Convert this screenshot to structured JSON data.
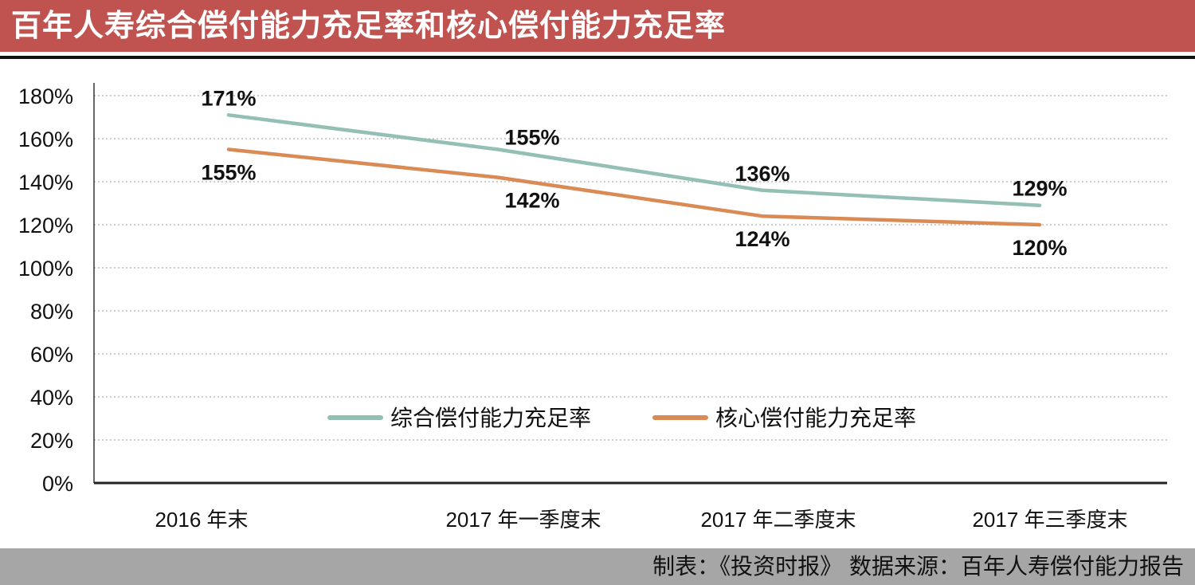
{
  "title": "百年人寿综合偿付能力充足率和核心偿付能力充足率",
  "footer": "制表：《投资时报》  数据来源：百年人寿偿付能力报告",
  "chart_data": {
    "type": "line",
    "title": "百年人寿综合偿付能力充足率和核心偿付能力充足率",
    "categories": [
      "2016 年末",
      "2017 年一季度末",
      "2017 年二季度末",
      "2017 年三季度末"
    ],
    "series": [
      {
        "name": "综合偿付能力充足率",
        "values": [
          171,
          155,
          136,
          129
        ],
        "labels": [
          "171%",
          "155%",
          "136%",
          "129%"
        ],
        "color": "#93bfb4"
      },
      {
        "name": "核心偿付能力充足率",
        "values": [
          155,
          142,
          124,
          120
        ],
        "labels": [
          "155%",
          "142%",
          "124%",
          "120%"
        ],
        "color": "#d98a55"
      }
    ],
    "yticks": [
      "0%",
      "20%",
      "40%",
      "60%",
      "80%",
      "100%",
      "120%",
      "140%",
      "160%",
      "180%"
    ],
    "ylim": [
      0,
      180
    ],
    "grid": true,
    "legend": "bottom-center",
    "xlabel": "",
    "ylabel": ""
  }
}
